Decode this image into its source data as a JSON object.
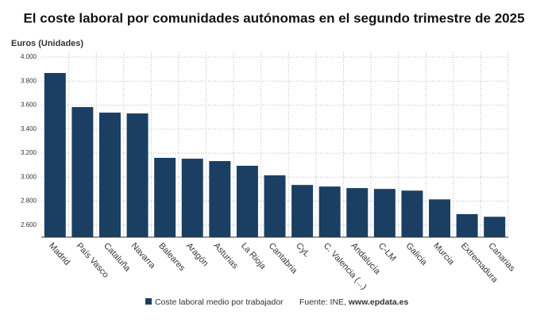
{
  "chart_data": {
    "type": "bar",
    "title": "El coste laboral por comunidades autónomas en el segundo trimestre de 2025",
    "y_label": "Euros (Unidades)",
    "categories": [
      "Madrid",
      "País Vasco",
      "Cataluña",
      "Navarra",
      "Baleares",
      "Aragón",
      "Asturias",
      "La Rioja",
      "Cantabria",
      "CyL",
      "C. Valencia (...)",
      "Andalucía",
      "C-LM",
      "Galicia",
      "Murcia",
      "Extremadura",
      "Canarias"
    ],
    "series": [
      {
        "name": "Coste laboral medio por trabajador",
        "color": "#1a3f63",
        "values": [
          3868,
          3584,
          3538,
          3531,
          3161,
          3154,
          3134,
          3095,
          3015,
          2935,
          2922,
          2909,
          2902,
          2888,
          2815,
          2692,
          2670
        ]
      }
    ],
    "ylim": [
      2500,
      4040
    ],
    "yticks": [
      {
        "value": 2600,
        "label": "2.600"
      },
      {
        "value": 2800,
        "label": "2.800"
      },
      {
        "value": 3000,
        "label": "3.000"
      },
      {
        "value": 3200,
        "label": "3.200"
      },
      {
        "value": 3400,
        "label": "3.400"
      },
      {
        "value": 3600,
        "label": "3.600"
      },
      {
        "value": 3800,
        "label": "3.800"
      },
      {
        "value": 4000,
        "label": "4.000"
      }
    ],
    "grid": true,
    "source": "Fuente: INE,",
    "source_site": "www.epdata.es"
  }
}
